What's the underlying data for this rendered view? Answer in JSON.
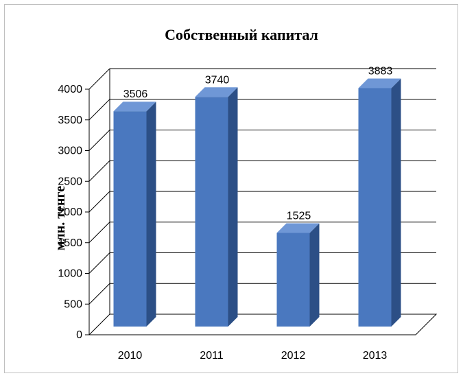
{
  "chart_data": {
    "type": "bar",
    "title": "Собственный капитал",
    "ylabel": "млн. тенге",
    "xlabel": "",
    "categories": [
      "2010",
      "2011",
      "2012",
      "2013"
    ],
    "values": [
      3506,
      3740,
      1525,
      3883
    ],
    "value_labels": [
      "3506",
      "3740",
      "1525",
      "3883"
    ],
    "ylim": [
      0,
      4000
    ],
    "yticks": [
      "0",
      "500",
      "1000",
      "1500",
      "2000",
      "2500",
      "3000",
      "3500",
      "4000"
    ],
    "grid": true,
    "legend": "none",
    "style": "3d-column",
    "colors": {
      "bar_front": "#4a78bf",
      "bar_side": "#2c4f86",
      "bar_top": "#6f97d6",
      "grid": "#000000"
    }
  }
}
